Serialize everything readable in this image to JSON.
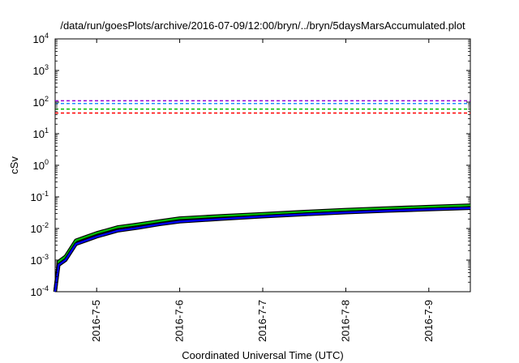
{
  "chart_data": {
    "type": "line",
    "title": "/data/run/goesPlots/archive/2016-07-09/12:00/bryn/../bryn/5daysMarsAccumulated.plot",
    "xlabel": "Coordinated Universal Time (UTC)",
    "ylabel": "cSv",
    "x_ticks": [
      "2016-7-5",
      "2016-7-6",
      "2016-7-7",
      "2016-7-8",
      "2016-7-9"
    ],
    "y_scale": "log",
    "y_ticks": [
      {
        "base": "10",
        "exp": "-4"
      },
      {
        "base": "10",
        "exp": "-3"
      },
      {
        "base": "10",
        "exp": "-2"
      },
      {
        "base": "10",
        "exp": "-1"
      },
      {
        "base": "10",
        "exp": "0"
      },
      {
        "base": "10",
        "exp": "1"
      },
      {
        "base": "10",
        "exp": "2"
      },
      {
        "base": "10",
        "exp": "3"
      },
      {
        "base": "10",
        "exp": "4"
      }
    ],
    "xlim": [
      "2016-07-04T12:00",
      "2016-07-09T12:00"
    ],
    "ylim": [
      0.0001,
      10000
    ],
    "grid": false,
    "reference_lines": [
      {
        "value": 110,
        "color": "#9400d3",
        "style": "dashed"
      },
      {
        "value": 90,
        "color": "#1e90ff",
        "style": "dashed"
      },
      {
        "value": 60,
        "color": "#00c000",
        "style": "dashed"
      },
      {
        "value": 45,
        "color": "#ff0000",
        "style": "dashed"
      }
    ],
    "series": [
      {
        "color": "#00c000",
        "x": [
          "2016-07-04T12:00",
          "2016-07-04T13:00",
          "2016-07-04T15:00",
          "2016-07-04T18:00",
          "2016-07-04T21:00",
          "2016-07-05T00:00",
          "2016-07-05T06:00",
          "2016-07-05T12:00",
          "2016-07-05T18:00",
          "2016-07-06T00:00",
          "2016-07-06T12:00",
          "2016-07-07T00:00",
          "2016-07-07T12:00",
          "2016-07-08T00:00",
          "2016-07-08T12:00",
          "2016-07-09T00:00",
          "2016-07-09T12:00"
        ],
        "y": [
          0.0001,
          0.0009,
          0.0013,
          0.0042,
          0.0055,
          0.0072,
          0.011,
          0.0135,
          0.017,
          0.021,
          0.025,
          0.029,
          0.034,
          0.039,
          0.044,
          0.049,
          0.054
        ]
      },
      {
        "color": "#0000ff",
        "x": [
          "2016-07-04T12:00",
          "2016-07-04T13:00",
          "2016-07-04T15:00",
          "2016-07-04T18:00",
          "2016-07-04T21:00",
          "2016-07-05T00:00",
          "2016-07-05T06:00",
          "2016-07-05T12:00",
          "2016-07-05T18:00",
          "2016-07-06T00:00",
          "2016-07-06T12:00",
          "2016-07-07T00:00",
          "2016-07-07T12:00",
          "2016-07-08T00:00",
          "2016-07-08T12:00",
          "2016-07-09T00:00",
          "2016-07-09T12:00"
        ],
        "y": [
          0.0001,
          0.0007,
          0.001,
          0.0032,
          0.0042,
          0.0055,
          0.0085,
          0.0105,
          0.0135,
          0.0165,
          0.02,
          0.024,
          0.028,
          0.032,
          0.036,
          0.04,
          0.044
        ]
      }
    ]
  }
}
